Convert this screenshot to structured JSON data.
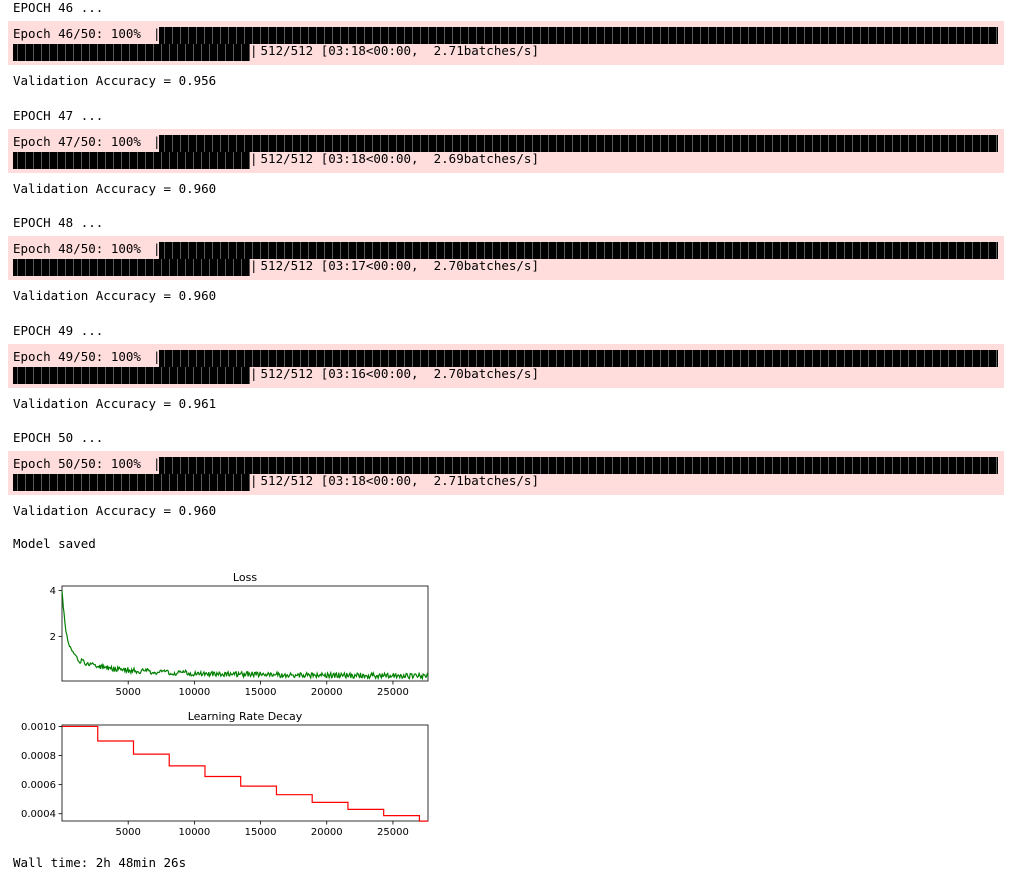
{
  "output": {
    "epochs": [
      {
        "header": "EPOCH 46 ...",
        "progress_prefix": "Epoch 46/50: 100%",
        "progress_suffix": " 512/512 [03:18<00:00,  2.71batches/s]",
        "validation": "Validation Accuracy = 0.956",
        "percent": 100
      },
      {
        "header": "EPOCH 47 ...",
        "progress_prefix": "Epoch 47/50: 100%",
        "progress_suffix": " 512/512 [03:18<00:00,  2.69batches/s]",
        "validation": "Validation Accuracy = 0.960",
        "percent": 100
      },
      {
        "header": "EPOCH 48 ...",
        "progress_prefix": "Epoch 48/50: 100%",
        "progress_suffix": " 512/512 [03:17<00:00,  2.70batches/s]",
        "validation": "Validation Accuracy = 0.960",
        "percent": 100
      },
      {
        "header": "EPOCH 49 ...",
        "progress_prefix": "Epoch 49/50: 100%",
        "progress_suffix": " 512/512 [03:16<00:00,  2.70batches/s]",
        "validation": "Validation Accuracy = 0.961",
        "percent": 100
      },
      {
        "header": "EPOCH 50 ...",
        "progress_prefix": "Epoch 50/50: 100%",
        "progress_suffix": " 512/512 [03:18<00:00,  2.71batches/s]",
        "validation": "Validation Accuracy = 0.960",
        "percent": 100
      }
    ],
    "model_saved": "Model saved",
    "wall_time": "Wall time: 2h 48min 26s",
    "progress_bar_color": "#000000",
    "stderr_background": "#ffdddd"
  },
  "chart_data": [
    {
      "type": "line",
      "title": "Loss",
      "xlabel": "",
      "ylabel": "",
      "xlim": [
        0,
        27648
      ],
      "ylim": [
        0.05,
        4.2
      ],
      "xticks": [
        "5000",
        "10000",
        "15000",
        "20000",
        "25000"
      ],
      "yticks": [
        "2",
        "4"
      ],
      "color": "#008000",
      "series": [
        {
          "x": [
            0,
            100,
            200,
            300,
            500,
            700,
            1000,
            1300,
            1700,
            2200,
            2800,
            3500,
            4500,
            5500,
            7000,
            8500,
            10000,
            12000,
            14000,
            16000,
            18000,
            20000,
            22000,
            24000,
            26000,
            27648
          ],
          "y": [
            4.0,
            3.3,
            2.7,
            2.2,
            1.7,
            1.4,
            1.15,
            0.95,
            0.85,
            0.75,
            0.68,
            0.62,
            0.55,
            0.5,
            0.45,
            0.42,
            0.39,
            0.36,
            0.34,
            0.32,
            0.31,
            0.3,
            0.29,
            0.28,
            0.27,
            0.27
          ]
        }
      ]
    },
    {
      "type": "line",
      "title": "Learning Rate Decay",
      "xlabel": "",
      "ylabel": "",
      "xlim": [
        0,
        27648
      ],
      "ylim": [
        0.00035,
        0.00101
      ],
      "xticks": [
        "5000",
        "10000",
        "15000",
        "20000",
        "25000"
      ],
      "yticks": [
        "0.0004",
        "0.0006",
        "0.0008",
        "0.0010"
      ],
      "color": "#ff0000",
      "series": [
        {
          "x": [
            0,
            2700,
            2700,
            5400,
            5400,
            8100,
            8100,
            10800,
            10800,
            13500,
            13500,
            16200,
            16200,
            18900,
            18900,
            21600,
            21600,
            24300,
            24300,
            27000,
            27000,
            27648
          ],
          "y": [
            0.001,
            0.001,
            0.0009,
            0.0009,
            0.00081,
            0.00081,
            0.000729,
            0.000729,
            0.000656,
            0.000656,
            0.00059,
            0.00059,
            0.000531,
            0.000531,
            0.000478,
            0.000478,
            0.00043,
            0.00043,
            0.000387,
            0.000387,
            0.000349,
            0.000349
          ]
        }
      ]
    }
  ]
}
